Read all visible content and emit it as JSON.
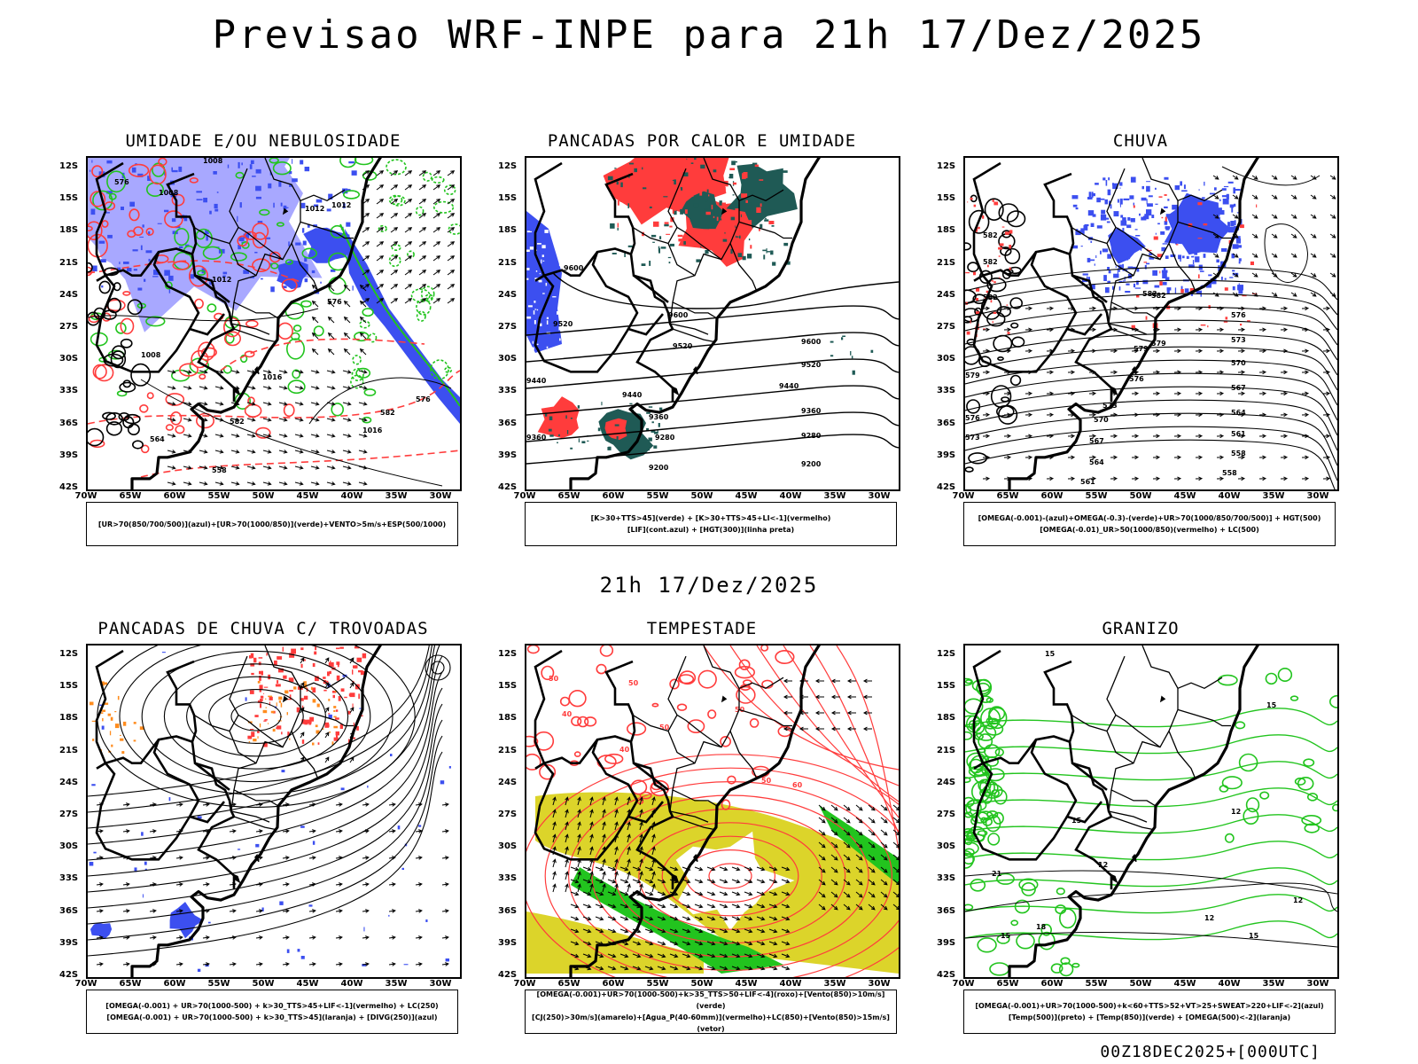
{
  "header": {
    "title": "Previsao WRF-INPE  para 21h 17/Dez/2025"
  },
  "mid_title": "21h 17/Dez/2025",
  "footer": "00Z18DEC2025+[000UTC]",
  "axes": {
    "lat_labels": [
      "12S",
      "15S",
      "18S",
      "21S",
      "24S",
      "27S",
      "30S",
      "33S",
      "36S",
      "39S",
      "42S"
    ],
    "lon_labels": [
      "70W",
      "65W",
      "60W",
      "55W",
      "50W",
      "45W",
      "40W",
      "35W",
      "30W"
    ]
  },
  "colors": {
    "blue": "#3c4ff0",
    "green": "#22c41e",
    "red": "#ff3c3c",
    "darkteal": "#1f5a55",
    "yellow": "#dcd42a",
    "lightblue": "#a8a8ff",
    "orange": "#ff8c1e"
  },
  "panels": [
    {
      "title": "UMIDADE E/OU NEBULOSIDADE",
      "legend": [
        "[UR>70(850/700/500)](azul)+[UR>70(1000/850)](verde)+VENTO>5m/s+ESP(500/1000)"
      ],
      "contour_labels": [
        "1008",
        "1008",
        "1012",
        "1012",
        "1016",
        "1016",
        "1012",
        "1008",
        "576",
        "576",
        "582",
        "582",
        "576",
        "564",
        "558"
      ]
    },
    {
      "title": "PANCADAS POR CALOR E UMIDADE",
      "legend": [
        "[K>30+TTS>45](verde) + [K>30+TTS>45+LI<-1](vermelho)",
        "[LIF](cont.azul) + [HGT(300)](linha preta)"
      ],
      "contour_labels": [
        "9600",
        "9520",
        "9600",
        "9520",
        "9440",
        "9360",
        "9280",
        "9200",
        "9600",
        "9520",
        "9440",
        "9360",
        "9280",
        "9200",
        "9440",
        "9360"
      ]
    },
    {
      "title": "CHUVA",
      "legend": [
        "[OMEGA(-0.001)-(azul)+OMEGA(-0.3)-(verde)+UR>70(1000/850/700/500)] + HGT(500)",
        "[OMEGA(-0.01)_UR>50(1000/850)(vermelho) + LC(500)"
      ],
      "contour_labels": [
        "582",
        "582",
        "582",
        "582",
        "582",
        "579",
        "576",
        "573",
        "570",
        "567",
        "564",
        "561",
        "558",
        "579",
        "576",
        "573",
        "570",
        "567",
        "564",
        "561",
        "558",
        "579",
        "576",
        "573"
      ]
    },
    {
      "title": "PANCADAS DE CHUVA C/ TROVOADAS",
      "legend": [
        "[OMEGA(-0.001) + UR>70(1000-500) + k>30_TTS>45+LIF<-1](vermelho) + LC(250)",
        "[OMEGA(-0.001) + UR>70(1000-500) + k>30_TTS>45](laranja) + [DIVG(250)](azul)"
      ],
      "contour_labels": []
    },
    {
      "title": "TEMPESTADE",
      "legend": [
        "[OMEGA(-0.001)+UR>70(1000-500)+k>35_TTS>50+LIF<-4](roxo)+[Vento(850)>10m/s](verde)",
        "[CJ(250)>30m/s](amarelo)+[Agua_P(40-60mm)](vermelho)+LC(850)+[Vento(850)>15m/s](vetor)"
      ],
      "contour_labels": [
        "50",
        "50",
        "40",
        "50",
        "60",
        "50",
        "40",
        "50"
      ]
    },
    {
      "title": "GRANIZO",
      "legend": [
        "[OMEGA(-0.001)+UR>70(1000-500)+k<60+TTS>52+VT>25+SWEAT>220+LIF<-2](azul)",
        "[Temp(500)](preto) + [Temp(850)](verde) + [OMEGA(500)<-2](laranja)"
      ],
      "contour_labels": [
        "15",
        "15",
        "12",
        "12",
        "15",
        "12",
        "15",
        "12",
        "21",
        "18",
        "15"
      ]
    }
  ]
}
